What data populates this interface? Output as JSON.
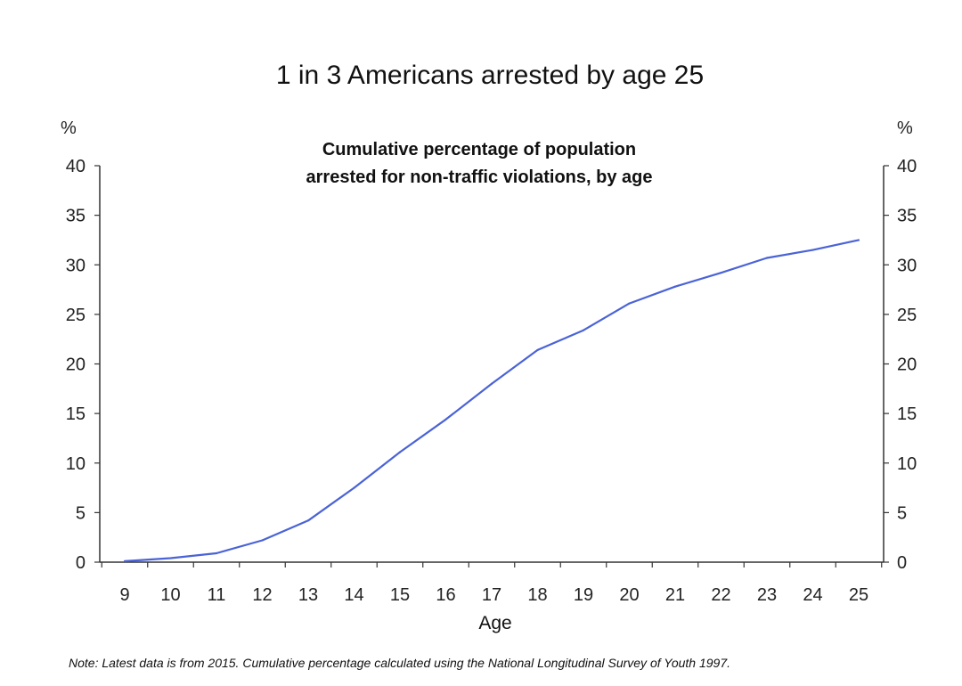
{
  "title": "1 in 3 Americans arrested by age 25",
  "subtitle_line1": "Cumulative percentage of population",
  "subtitle_line2": "arrested for non-traffic violations, by age",
  "unit_left": "%",
  "unit_right": "%",
  "xlabel": "Age",
  "note": "Note: Latest data is from 2015. Cumulative percentage calculated using the National Longitudinal Survey of Youth 1997.",
  "colors": {
    "line": "#4a63d6",
    "axis": "#333333"
  },
  "chart_data": {
    "type": "line",
    "title": "1 in 3 Americans arrested by age 25",
    "subtitle": "Cumulative percentage of population arrested for non-traffic violations, by age",
    "xlabel": "Age",
    "ylabel": "%",
    "x": [
      9,
      10,
      11,
      12,
      13,
      14,
      15,
      16,
      17,
      18,
      19,
      20,
      21,
      22,
      23,
      24,
      25
    ],
    "xlim": [
      9,
      25
    ],
    "ylim": [
      0,
      40
    ],
    "yticks": [
      0,
      5,
      10,
      15,
      20,
      25,
      30,
      35,
      40
    ],
    "grid": false,
    "secondary_y_axis": true,
    "series": [
      {
        "values": [
          0.1,
          0.4,
          0.9,
          2.2,
          4.2,
          7.5,
          11.1,
          14.4,
          18.0,
          21.4,
          23.4,
          26.1,
          27.8,
          29.2,
          30.7,
          31.5,
          32.5
        ]
      }
    ]
  }
}
